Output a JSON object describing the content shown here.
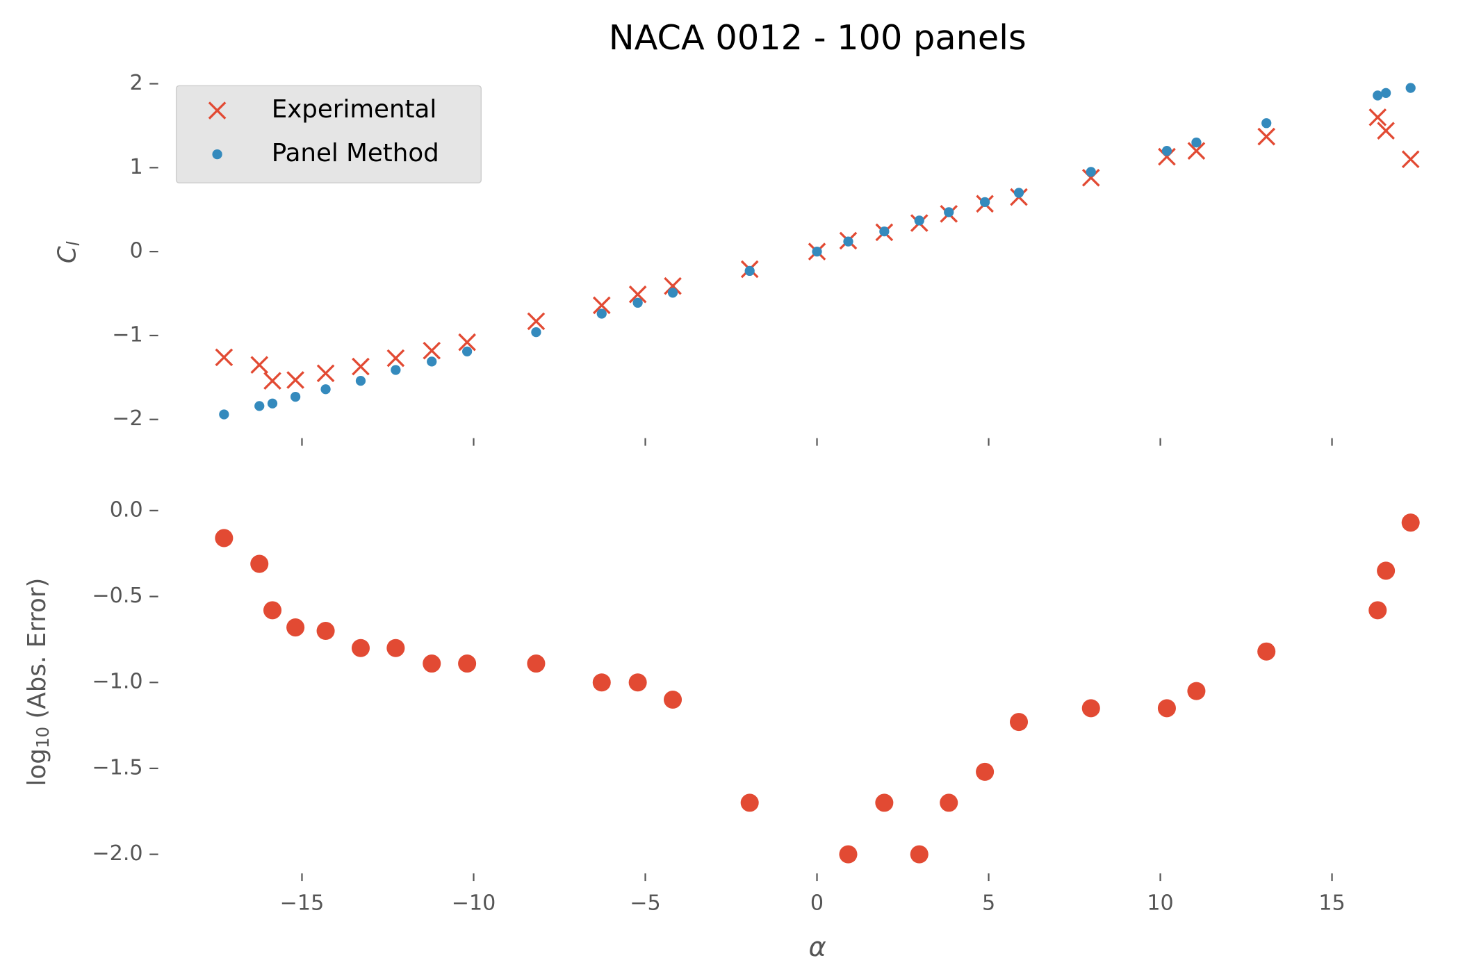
{
  "chart_data": [
    {
      "type": "scatter",
      "title": "NACA 0012 - 100 panels",
      "ylabel": [
        "C",
        "l"
      ],
      "x": [
        -17.27,
        -16.24,
        -15.86,
        -15.19,
        -14.31,
        -13.29,
        -12.27,
        -11.22,
        -10.19,
        -8.18,
        -6.27,
        -5.22,
        -4.2,
        -1.96,
        0,
        0.91,
        1.96,
        2.98,
        3.84,
        4.89,
        5.88,
        7.98,
        10.19,
        11.05,
        13.09,
        16.33,
        16.57,
        17.29
      ],
      "series": [
        {
          "name": "Experimental",
          "color": "#E24A33",
          "marker": "x",
          "values": [
            -1.26,
            -1.35,
            -1.54,
            -1.53,
            -1.45,
            -1.37,
            -1.27,
            -1.18,
            -1.08,
            -0.83,
            -0.64,
            -0.51,
            -0.41,
            -0.21,
            0,
            0.13,
            0.23,
            0.34,
            0.45,
            0.57,
            0.65,
            0.88,
            1.13,
            1.2,
            1.37,
            1.6,
            1.44,
            1.1
          ]
        },
        {
          "name": "Panel Method",
          "color": "#348ABD",
          "marker": "dot",
          "values": [
            -1.94,
            -1.84,
            -1.81,
            -1.73,
            -1.64,
            -1.54,
            -1.41,
            -1.31,
            -1.19,
            -0.96,
            -0.74,
            -0.61,
            -0.49,
            -0.23,
            0,
            0.12,
            0.24,
            0.37,
            0.47,
            0.59,
            0.7,
            0.95,
            1.2,
            1.3,
            1.53,
            1.86,
            1.89,
            1.95
          ]
        }
      ],
      "xlim": [
        -18.8,
        18.8
      ],
      "ylim": [
        -2.2,
        2.26
      ],
      "yticks": [
        {
          "value": -2,
          "label": "−2"
        },
        {
          "value": -1,
          "label": "−1"
        },
        0,
        1,
        2
      ],
      "legend": "upper left"
    },
    {
      "type": "scatter",
      "ylabel": [
        "log",
        "10",
        " (Abs. Error)"
      ],
      "xlabel": "α",
      "x": [
        -17.27,
        -16.24,
        -15.86,
        -15.19,
        -14.31,
        -13.29,
        -12.27,
        -11.22,
        -10.19,
        -8.18,
        -6.27,
        -5.22,
        -4.2,
        -1.96,
        0,
        0.91,
        1.96,
        2.98,
        3.84,
        4.89,
        5.88,
        7.98,
        10.19,
        11.05,
        13.09,
        16.33,
        16.57,
        17.29
      ],
      "color": "#E24A33",
      "values": [
        -0.16,
        -0.31,
        -0.58,
        -0.68,
        -0.7,
        -0.8,
        -0.8,
        -0.89,
        -0.89,
        -0.89,
        -1.0,
        -1.0,
        -1.1,
        -1.7,
        null,
        -2.0,
        -1.7,
        -2.0,
        -1.7,
        -1.52,
        -1.23,
        -1.15,
        -1.15,
        -1.05,
        -0.82,
        -0.58,
        -0.35,
        -0.07
      ],
      "xlim": [
        -18.8,
        18.8
      ],
      "ylim": [
        -2.1,
        0.1
      ],
      "xticks": [
        {
          "value": -15,
          "label": "−15"
        },
        {
          "value": -10,
          "label": "−10"
        },
        {
          "value": -5,
          "label": "−5"
        },
        0,
        5,
        10,
        15
      ],
      "yticks": [
        {
          "value": -2,
          "label": "−2.0"
        },
        {
          "value": -1.5,
          "label": "−1.5"
        },
        {
          "value": -1,
          "label": "−1.0"
        },
        {
          "value": -0.5,
          "label": "−0.5"
        },
        {
          "value": 0,
          "label": "0.0"
        }
      ]
    }
  ]
}
